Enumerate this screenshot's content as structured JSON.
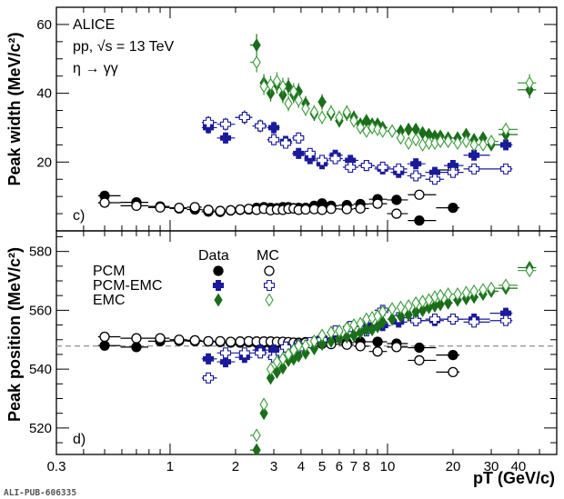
{
  "watermark": "ALI-PUB-606335",
  "colors": {
    "pcm": "#000000",
    "pcmemc": "#1a1a9c",
    "emc": "#1a6e1a",
    "emc_mc": "#3a9a3a",
    "ref_line": "#999999"
  },
  "chart_data": [
    {
      "type": "scatter",
      "panel_label": "c)",
      "ylabel": "Peak width (MeV/c²)",
      "xscale": "log",
      "xlim": [
        0.3,
        60
      ],
      "ylim": [
        0,
        65
      ],
      "yticks": [
        20,
        40,
        60
      ],
      "annotations": [
        "ALICE",
        "pp, √s = 13 TeV",
        "η → γγ"
      ],
      "series": [
        {
          "key": "pcm_data",
          "marker": "circle",
          "filled": true,
          "x": [
            0.5,
            0.7,
            0.9,
            1.1,
            1.3,
            1.5,
            1.7,
            1.9,
            2.1,
            2.3,
            2.5,
            2.7,
            2.9,
            3.1,
            3.3,
            3.5,
            3.7,
            3.9,
            4.2,
            4.6,
            5.0,
            5.5,
            6.5,
            7.5,
            9.0,
            11.0,
            14.0,
            20.0
          ],
          "y": [
            10.2,
            8.3,
            7.1,
            6.5,
            6.2,
            5.6,
            5.5,
            5.9,
            6.1,
            6.2,
            6.7,
            6.9,
            6.7,
            6.6,
            6.9,
            6.9,
            6.6,
            6.7,
            6.7,
            7.3,
            8.0,
            7.3,
            7.5,
            7.8,
            9.2,
            9.0,
            3.0,
            6.7
          ]
        },
        {
          "key": "pcm_mc",
          "marker": "circle",
          "filled": false,
          "x": [
            0.5,
            0.7,
            0.9,
            1.1,
            1.3,
            1.5,
            1.7,
            1.9,
            2.1,
            2.3,
            2.5,
            2.7,
            2.9,
            3.1,
            3.3,
            3.5,
            3.7,
            3.9,
            4.2,
            4.6,
            5.0,
            5.5,
            6.5,
            7.5,
            9.0,
            11.0,
            14.0,
            20.0
          ],
          "y": [
            8.2,
            7.3,
            6.8,
            6.7,
            6.9,
            6.1,
            5.8,
            6.0,
            6.2,
            6.4,
            6.1,
            6.4,
            6.0,
            6.2,
            6.1,
            6.4,
            6.5,
            6.1,
            6.2,
            6.3,
            6.1,
            6.4,
            6.3,
            6.5,
            7.9,
            5.0,
            10.5,
            17.7
          ]
        },
        {
          "key": "pcmemc_data",
          "marker": "cross",
          "filled": true,
          "x": [
            1.5,
            1.8,
            2.2,
            2.6,
            3.0,
            3.4,
            3.9,
            4.4,
            5.0,
            5.75,
            6.75,
            8.0,
            9.5,
            11.25,
            13.5,
            16.5,
            20.0,
            25.0,
            35.0
          ],
          "y": [
            30.0,
            27.0,
            33.0,
            30.5,
            30.0,
            26.0,
            22.5,
            21.0,
            19.5,
            22.0,
            20.5,
            19.0,
            18.0,
            17.0,
            19.5,
            17.0,
            19.0,
            22.0,
            25.0
          ]
        },
        {
          "key": "pcmemc_mc",
          "marker": "cross",
          "filled": false,
          "x": [
            1.5,
            1.8,
            2.2,
            2.6,
            3.0,
            3.4,
            3.9,
            4.4,
            5.0,
            5.75,
            6.75,
            8.0,
            9.5,
            11.25,
            13.5,
            16.5,
            20.0,
            25.0,
            35.0
          ],
          "y": [
            31.5,
            31.0,
            33.0,
            30.5,
            26.5,
            25.5,
            27.0,
            22.5,
            20.5,
            21.0,
            18.5,
            19.0,
            18.5,
            18.0,
            16.0,
            15.0,
            17.0,
            18.0,
            18.0
          ]
        },
        {
          "key": "emc_data",
          "marker": "diamond",
          "filled": true,
          "x": [
            2.5,
            2.7,
            2.9,
            3.1,
            3.3,
            3.5,
            3.7,
            3.9,
            4.2,
            4.6,
            5.0,
            5.5,
            6.0,
            6.5,
            7.0,
            7.5,
            8.0,
            8.5,
            9.0,
            9.5,
            10.5,
            11.5,
            12.5,
            13.5,
            14.5,
            15.5,
            16.5,
            17.5,
            19.0,
            21.0,
            23.0,
            25.0,
            27.5,
            30.0,
            35.0,
            45.0
          ],
          "y": [
            54.0,
            43.0,
            40.0,
            42.5,
            39.5,
            42.0,
            39.5,
            40.5,
            37.0,
            34.0,
            37.5,
            34.0,
            32.0,
            34.0,
            33.0,
            31.0,
            32.0,
            31.0,
            31.0,
            30.0,
            29.0,
            29.0,
            29.5,
            29.5,
            28.5,
            28.0,
            27.5,
            27.5,
            27.0,
            27.0,
            28.0,
            26.5,
            27.0,
            25.0,
            28.0,
            41.0
          ]
        },
        {
          "key": "emc_mc",
          "marker": "diamond",
          "filled": false,
          "x": [
            2.5,
            2.7,
            2.9,
            3.1,
            3.3,
            3.5,
            3.7,
            3.9,
            4.2,
            4.6,
            5.0,
            5.5,
            6.0,
            6.5,
            7.0,
            7.5,
            8.0,
            8.5,
            9.0,
            9.5,
            10.5,
            11.5,
            12.5,
            13.5,
            14.5,
            15.5,
            16.5,
            17.5,
            19.0,
            21.0,
            23.0,
            25.0,
            27.5,
            30.0,
            35.0,
            45.0
          ],
          "y": [
            49.0,
            42.0,
            42.5,
            43.5,
            42.0,
            37.0,
            40.5,
            38.0,
            35.5,
            34.5,
            33.0,
            34.5,
            33.0,
            34.5,
            32.0,
            30.0,
            29.0,
            30.0,
            29.5,
            29.0,
            29.0,
            27.0,
            25.5,
            26.5,
            25.0,
            25.5,
            25.5,
            26.0,
            26.0,
            25.5,
            26.0,
            25.0,
            25.0,
            26.0,
            29.5,
            43.0
          ]
        }
      ]
    },
    {
      "type": "scatter",
      "panel_label": "d)",
      "ylabel": "Peak position (MeV/c²)",
      "xlabel": "pT (GeV/c)",
      "xscale": "log",
      "xlim": [
        0.3,
        60
      ],
      "ylim": [
        511,
        587
      ],
      "yticks": [
        520,
        540,
        560,
        580
      ],
      "xticks": [
        0.3,
        1,
        2,
        3,
        4,
        5,
        6,
        7,
        8,
        10,
        20,
        30,
        40
      ],
      "xticklabels": [
        "0.3",
        "1",
        "2",
        "3",
        "4",
        "5",
        "6",
        "7",
        "8",
        "10",
        "20",
        "30",
        "40"
      ],
      "reference_line": 547.86,
      "legend": {
        "header_data": "Data",
        "header_mc": "MC",
        "rows": [
          "PCM",
          "PCM-EMC",
          "EMC"
        ]
      },
      "series": [
        {
          "key": "pcm_data",
          "marker": "circle",
          "filled": true,
          "x": [
            0.5,
            0.7,
            0.9,
            1.1,
            1.3,
            1.5,
            1.7,
            1.9,
            2.1,
            2.3,
            2.5,
            2.7,
            2.9,
            3.1,
            3.3,
            3.5,
            3.7,
            3.9,
            4.2,
            4.6,
            5.0,
            5.5,
            6.5,
            7.5,
            9.0,
            11.0,
            14.0,
            20.0
          ],
          "y": [
            548.0,
            547.5,
            549.5,
            549.6,
            549.5,
            549.4,
            549.2,
            549.0,
            549.0,
            549.1,
            549.0,
            549.0,
            548.8,
            548.8,
            548.9,
            549.0,
            549.0,
            549.0,
            549.2,
            549.4,
            549.5,
            549.3,
            549.0,
            549.3,
            549.3,
            548.7,
            547.3,
            544.8
          ]
        },
        {
          "key": "pcm_mc",
          "marker": "circle",
          "filled": false,
          "x": [
            0.5,
            0.7,
            0.9,
            1.1,
            1.3,
            1.5,
            1.7,
            1.9,
            2.1,
            2.3,
            2.5,
            2.7,
            2.9,
            3.1,
            3.3,
            3.5,
            3.7,
            3.9,
            4.2,
            4.6,
            5.0,
            5.5,
            6.5,
            7.5,
            9.0,
            11.0,
            14.0,
            20.0
          ],
          "y": [
            551.0,
            550.5,
            550.5,
            550.0,
            549.8,
            549.5,
            549.5,
            549.3,
            549.4,
            549.5,
            549.4,
            549.4,
            549.4,
            549.3,
            549.3,
            549.2,
            549.0,
            548.8,
            549.0,
            548.8,
            548.6,
            548.5,
            548.3,
            547.8,
            546.0,
            547.5,
            543.0,
            539.0
          ]
        },
        {
          "key": "pcmemc_data",
          "marker": "cross",
          "filled": true,
          "x": [
            1.5,
            1.8,
            2.2,
            2.6,
            3.0,
            3.4,
            3.9,
            4.4,
            5.0,
            5.75,
            6.75,
            8.0,
            9.5,
            11.25,
            13.5,
            16.5,
            20.0,
            25.0,
            35.0
          ],
          "y": [
            543.5,
            542.5,
            544.0,
            546.5,
            546.5,
            547.5,
            548.0,
            549.0,
            550.5,
            552.5,
            554.5,
            555.0,
            554.8,
            556.0,
            556.5,
            556.5,
            557.0,
            557.0,
            559.0
          ]
        },
        {
          "key": "pcmemc_mc",
          "marker": "cross",
          "filled": false,
          "x": [
            1.5,
            1.8,
            2.2,
            2.6,
            3.0,
            3.4,
            3.9,
            4.4,
            5.0,
            5.75,
            6.75,
            8.0,
            9.5,
            11.25,
            13.5,
            16.5,
            20.0,
            25.0,
            35.0
          ],
          "y": [
            537.0,
            545.5,
            545.5,
            545.5,
            544.0,
            547.5,
            547.0,
            549.0,
            550.0,
            553.0,
            554.5,
            553.0,
            560.0,
            557.5,
            556.5,
            557.0,
            557.0,
            556.0,
            556.5
          ]
        },
        {
          "key": "emc_data",
          "marker": "diamond",
          "filled": true,
          "x": [
            2.5,
            2.7,
            2.9,
            3.1,
            3.3,
            3.5,
            3.7,
            3.9,
            4.2,
            4.6,
            5.0,
            5.5,
            6.0,
            6.5,
            7.0,
            7.5,
            8.0,
            8.5,
            9.0,
            9.5,
            10.5,
            11.5,
            12.5,
            13.5,
            14.5,
            15.5,
            16.5,
            17.5,
            19.0,
            21.0,
            23.0,
            25.0,
            27.5,
            30.0,
            35.0,
            45.0
          ],
          "y": [
            512.5,
            525.0,
            537.0,
            539.0,
            540.5,
            543.0,
            543.5,
            544.5,
            545.5,
            547.0,
            548.5,
            549.5,
            550.5,
            551.0,
            551.5,
            552.5,
            553.5,
            553.5,
            554.5,
            556.0,
            557.0,
            558.0,
            558.5,
            559.5,
            560.0,
            561.0,
            561.5,
            562.0,
            562.5,
            563.5,
            564.0,
            564.5,
            565.5,
            566.5,
            567.5,
            574.5
          ]
        },
        {
          "key": "emc_mc",
          "marker": "diamond",
          "filled": false,
          "x": [
            2.5,
            2.7,
            2.9,
            3.1,
            3.3,
            3.5,
            3.7,
            3.9,
            4.2,
            4.6,
            5.0,
            5.5,
            6.0,
            6.5,
            7.0,
            7.5,
            8.0,
            8.5,
            9.0,
            9.5,
            10.5,
            11.5,
            12.5,
            13.5,
            14.5,
            15.5,
            16.5,
            17.5,
            19.0,
            21.0,
            23.0,
            25.0,
            27.5,
            30.0,
            35.0,
            45.0
          ],
          "y": [
            517.5,
            528.0,
            540.0,
            542.5,
            543.5,
            545.0,
            546.5,
            548.0,
            548.0,
            549.5,
            551.5,
            552.5,
            553.0,
            554.0,
            555.0,
            555.5,
            557.0,
            557.5,
            558.0,
            559.5,
            560.5,
            561.0,
            561.5,
            562.5,
            563.0,
            563.5,
            564.5,
            565.0,
            565.5,
            565.5,
            566.0,
            566.5,
            567.0,
            567.5,
            568.5,
            573.5
          ]
        }
      ]
    }
  ]
}
